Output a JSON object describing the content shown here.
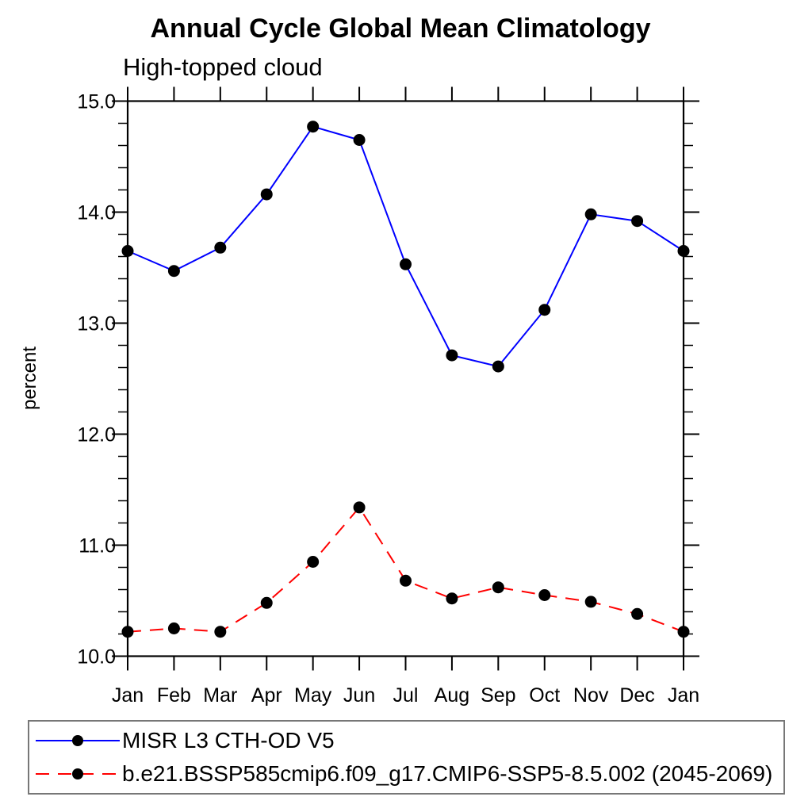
{
  "header": {
    "title": "Annual Cycle Global Mean Climatology",
    "subtitle": "High-topped cloud"
  },
  "legend": {
    "items": [
      {
        "label": "MISR L3 CTH-OD V5",
        "color": "#0000ff",
        "style": "solid"
      },
      {
        "label": "b.e21.BSSP585cmip6.f09_g17.CMIP6-SSP5-8.5.002 (2045-2069)",
        "color": "#ff0000",
        "style": "dashed"
      }
    ]
  },
  "chart_data": {
    "type": "line",
    "title": "Annual Cycle Global Mean Climatology",
    "subtitle": "High-topped cloud",
    "xlabel": "",
    "ylabel": "percent",
    "x_tick_labels": [
      "Jan",
      "Feb",
      "Mar",
      "Apr",
      "May",
      "Jun",
      "Jul",
      "Aug",
      "Sep",
      "Oct",
      "Nov",
      "Dec",
      "Jan"
    ],
    "ylim": [
      10.0,
      15.0
    ],
    "y_ticks": [
      10.0,
      11.0,
      12.0,
      13.0,
      14.0,
      15.0
    ],
    "y_tick_labels": [
      "10.0",
      "11.0",
      "12.0",
      "13.0",
      "14.0",
      "15.0"
    ],
    "y_minor_step": 0.2,
    "grid": false,
    "legend_position": "bottom-left-box",
    "marker": "filled-circle",
    "marker_color": "#000000",
    "series": [
      {
        "name": "MISR L3 CTH-OD V5",
        "color": "#0000ff",
        "line_style": "solid",
        "values": [
          13.65,
          13.47,
          13.68,
          14.16,
          14.77,
          14.65,
          13.53,
          12.71,
          12.61,
          13.12,
          13.98,
          13.92,
          13.65
        ]
      },
      {
        "name": "b.e21.BSSP585cmip6.f09_g17.CMIP6-SSP5-8.5.002 (2045-2069)",
        "color": "#ff0000",
        "line_style": "dashed",
        "values": [
          10.22,
          10.25,
          10.22,
          10.48,
          10.85,
          11.34,
          10.68,
          10.52,
          10.62,
          10.55,
          10.49,
          10.38,
          10.22
        ]
      }
    ]
  }
}
